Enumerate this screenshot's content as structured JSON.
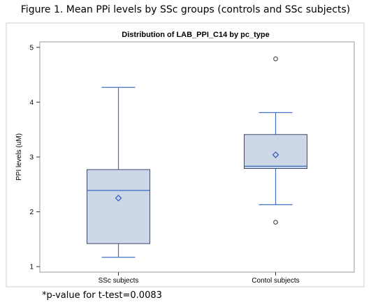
{
  "figure": {
    "caption": "Figure 1. Mean PPi levels by SSc groups (controls and SSc subjects)",
    "footnote": "*p-value for t-test=0.0083"
  },
  "colors": {
    "box_fill": "#cdd7e8",
    "box_stroke": "#3b4a6b",
    "median": "#4472c4",
    "whisker": "#4472c4",
    "mean_marker": "#2e5ab8",
    "outlier": "#333333",
    "frame": "#cccccc"
  },
  "chart_data": {
    "type": "box",
    "title": "Distribution of LAB_PPI_C14 by pc_type",
    "xlabel": "",
    "ylabel": "PPI levels (uM)",
    "ylim": [
      0.9,
      5.1
    ],
    "yticks": [
      "1",
      "2",
      "3",
      "4",
      "5"
    ],
    "categories": [
      "SSc subjects",
      "Contol subjects"
    ],
    "boxes": [
      {
        "category": "SSc subjects",
        "whisker_low": 1.17,
        "q1": 1.42,
        "median": 2.39,
        "q3": 2.77,
        "whisker_high": 4.27,
        "mean": 2.25,
        "outliers": []
      },
      {
        "category": "Contol subjects",
        "whisker_low": 2.13,
        "q1": 2.79,
        "median": 2.83,
        "q3": 3.41,
        "whisker_high": 3.81,
        "mean": 3.04,
        "outliers": [
          1.81,
          4.79
        ]
      }
    ]
  }
}
